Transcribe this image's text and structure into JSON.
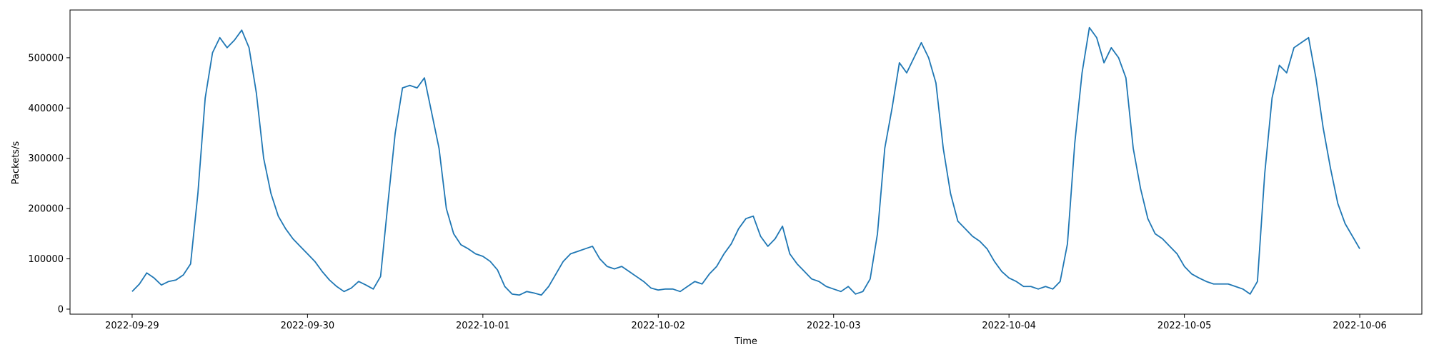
{
  "chart_data": {
    "type": "line",
    "title": "",
    "xlabel": "Time",
    "ylabel": "Packets/s",
    "xlim": [
      "2022-09-28T15:30:00",
      "2022-10-06T08:30:00"
    ],
    "ylim": [
      -10000,
      595000
    ],
    "grid": false,
    "legend": "none",
    "line_color": "#1f77b4",
    "x_ticks": [
      "2022-09-29",
      "2022-09-30",
      "2022-10-01",
      "2022-10-02",
      "2022-10-03",
      "2022-10-04",
      "2022-10-05",
      "2022-10-06"
    ],
    "y_ticks": [
      0,
      100000,
      200000,
      300000,
      400000,
      500000
    ],
    "y_tick_labels": [
      "0",
      "100000",
      "200000",
      "300000",
      "400000",
      "500000"
    ],
    "series": [
      {
        "x": [
          "2022-09-29T00:00:00",
          "2022-09-29T01:00:00",
          "2022-09-29T02:00:00",
          "2022-09-29T03:00:00",
          "2022-09-29T04:00:00",
          "2022-09-29T05:00:00",
          "2022-09-29T06:00:00",
          "2022-09-29T07:00:00",
          "2022-09-29T08:00:00",
          "2022-09-29T09:00:00",
          "2022-09-29T10:00:00",
          "2022-09-29T11:00:00",
          "2022-09-29T12:00:00",
          "2022-09-29T13:00:00",
          "2022-09-29T14:00:00",
          "2022-09-29T15:00:00",
          "2022-09-29T16:00:00",
          "2022-09-29T17:00:00",
          "2022-09-29T18:00:00",
          "2022-09-29T19:00:00",
          "2022-09-29T20:00:00",
          "2022-09-29T21:00:00",
          "2022-09-29T22:00:00",
          "2022-09-29T23:00:00",
          "2022-09-30T00:00:00",
          "2022-09-30T01:00:00",
          "2022-09-30T02:00:00",
          "2022-09-30T03:00:00",
          "2022-09-30T04:00:00",
          "2022-09-30T05:00:00",
          "2022-09-30T06:00:00",
          "2022-09-30T07:00:00",
          "2022-09-30T08:00:00",
          "2022-09-30T09:00:00",
          "2022-09-30T10:00:00",
          "2022-09-30T11:00:00",
          "2022-09-30T12:00:00",
          "2022-09-30T13:00:00",
          "2022-09-30T14:00:00",
          "2022-09-30T15:00:00",
          "2022-09-30T16:00:00",
          "2022-09-30T17:00:00",
          "2022-09-30T18:00:00",
          "2022-09-30T19:00:00",
          "2022-09-30T20:00:00",
          "2022-09-30T21:00:00",
          "2022-09-30T22:00:00",
          "2022-09-30T23:00:00",
          "2022-10-01T00:00:00",
          "2022-10-01T01:00:00",
          "2022-10-01T02:00:00",
          "2022-10-01T03:00:00",
          "2022-10-01T04:00:00",
          "2022-10-01T05:00:00",
          "2022-10-01T06:00:00",
          "2022-10-01T07:00:00",
          "2022-10-01T08:00:00",
          "2022-10-01T09:00:00",
          "2022-10-01T10:00:00",
          "2022-10-01T11:00:00",
          "2022-10-01T12:00:00",
          "2022-10-01T13:00:00",
          "2022-10-01T14:00:00",
          "2022-10-01T15:00:00",
          "2022-10-01T16:00:00",
          "2022-10-01T17:00:00",
          "2022-10-01T18:00:00",
          "2022-10-01T19:00:00",
          "2022-10-01T20:00:00",
          "2022-10-01T21:00:00",
          "2022-10-01T22:00:00",
          "2022-10-01T23:00:00",
          "2022-10-02T00:00:00",
          "2022-10-02T01:00:00",
          "2022-10-02T02:00:00",
          "2022-10-02T03:00:00",
          "2022-10-02T04:00:00",
          "2022-10-02T05:00:00",
          "2022-10-02T06:00:00",
          "2022-10-02T07:00:00",
          "2022-10-02T08:00:00",
          "2022-10-02T09:00:00",
          "2022-10-02T10:00:00",
          "2022-10-02T11:00:00",
          "2022-10-02T12:00:00",
          "2022-10-02T13:00:00",
          "2022-10-02T14:00:00",
          "2022-10-02T15:00:00",
          "2022-10-02T16:00:00",
          "2022-10-02T17:00:00",
          "2022-10-02T18:00:00",
          "2022-10-02T19:00:00",
          "2022-10-02T20:00:00",
          "2022-10-02T21:00:00",
          "2022-10-02T22:00:00",
          "2022-10-02T23:00:00",
          "2022-10-03T00:00:00",
          "2022-10-03T01:00:00",
          "2022-10-03T02:00:00",
          "2022-10-03T03:00:00",
          "2022-10-03T04:00:00",
          "2022-10-03T05:00:00",
          "2022-10-03T06:00:00",
          "2022-10-03T07:00:00",
          "2022-10-03T08:00:00",
          "2022-10-03T09:00:00",
          "2022-10-03T10:00:00",
          "2022-10-03T11:00:00",
          "2022-10-03T12:00:00",
          "2022-10-03T13:00:00",
          "2022-10-03T14:00:00",
          "2022-10-03T15:00:00",
          "2022-10-03T16:00:00",
          "2022-10-03T17:00:00",
          "2022-10-03T18:00:00",
          "2022-10-03T19:00:00",
          "2022-10-03T20:00:00",
          "2022-10-03T21:00:00",
          "2022-10-03T22:00:00",
          "2022-10-03T23:00:00",
          "2022-10-04T00:00:00",
          "2022-10-04T01:00:00",
          "2022-10-04T02:00:00",
          "2022-10-04T03:00:00",
          "2022-10-04T04:00:00",
          "2022-10-04T05:00:00",
          "2022-10-04T06:00:00",
          "2022-10-04T07:00:00",
          "2022-10-04T08:00:00",
          "2022-10-04T09:00:00",
          "2022-10-04T10:00:00",
          "2022-10-04T11:00:00",
          "2022-10-04T12:00:00",
          "2022-10-04T13:00:00",
          "2022-10-04T14:00:00",
          "2022-10-04T15:00:00",
          "2022-10-04T16:00:00",
          "2022-10-04T17:00:00",
          "2022-10-04T18:00:00",
          "2022-10-04T19:00:00",
          "2022-10-04T20:00:00",
          "2022-10-04T21:00:00",
          "2022-10-04T22:00:00",
          "2022-10-04T23:00:00",
          "2022-10-05T00:00:00",
          "2022-10-05T01:00:00",
          "2022-10-05T02:00:00",
          "2022-10-05T03:00:00",
          "2022-10-05T04:00:00",
          "2022-10-05T05:00:00",
          "2022-10-05T06:00:00",
          "2022-10-05T07:00:00",
          "2022-10-05T08:00:00",
          "2022-10-05T09:00:00",
          "2022-10-05T10:00:00",
          "2022-10-05T11:00:00",
          "2022-10-05T12:00:00",
          "2022-10-05T13:00:00",
          "2022-10-05T14:00:00",
          "2022-10-05T15:00:00",
          "2022-10-05T16:00:00",
          "2022-10-05T17:00:00",
          "2022-10-05T18:00:00",
          "2022-10-05T19:00:00",
          "2022-10-05T20:00:00",
          "2022-10-05T21:00:00",
          "2022-10-05T22:00:00",
          "2022-10-05T23:00:00",
          "2022-10-06T00:00:00"
        ],
        "y": [
          35000,
          50000,
          72000,
          62000,
          48000,
          55000,
          58000,
          68000,
          90000,
          230000,
          420000,
          510000,
          540000,
          520000,
          535000,
          555000,
          520000,
          430000,
          300000,
          230000,
          185000,
          160000,
          140000,
          125000,
          110000,
          95000,
          75000,
          58000,
          45000,
          35000,
          42000,
          55000,
          48000,
          40000,
          65000,
          210000,
          350000,
          440000,
          445000,
          440000,
          460000,
          390000,
          320000,
          200000,
          150000,
          128000,
          120000,
          110000,
          105000,
          95000,
          78000,
          45000,
          30000,
          28000,
          35000,
          32000,
          28000,
          45000,
          70000,
          95000,
          110000,
          115000,
          120000,
          125000,
          100000,
          85000,
          80000,
          85000,
          75000,
          65000,
          55000,
          42000,
          38000,
          40000,
          40000,
          35000,
          45000,
          55000,
          50000,
          70000,
          85000,
          110000,
          130000,
          160000,
          180000,
          185000,
          145000,
          125000,
          140000,
          165000,
          110000,
          90000,
          75000,
          60000,
          55000,
          45000,
          40000,
          35000,
          45000,
          30000,
          35000,
          60000,
          150000,
          320000,
          400000,
          490000,
          470000,
          500000,
          530000,
          500000,
          450000,
          320000,
          230000,
          175000,
          160000,
          145000,
          135000,
          120000,
          95000,
          75000,
          62000,
          55000,
          45000,
          45000,
          40000,
          45000,
          40000,
          55000,
          130000,
          330000,
          470000,
          560000,
          540000,
          490000,
          520000,
          500000,
          460000,
          320000,
          240000,
          180000,
          150000,
          140000,
          125000,
          110000,
          85000,
          70000,
          62000,
          55000,
          50000,
          50000,
          50000,
          45000,
          40000,
          30000,
          55000,
          270000,
          420000,
          485000,
          470000,
          520000,
          530000,
          540000,
          460000,
          360000,
          280000,
          210000,
          170000,
          145000,
          120000
        ]
      }
    ]
  }
}
